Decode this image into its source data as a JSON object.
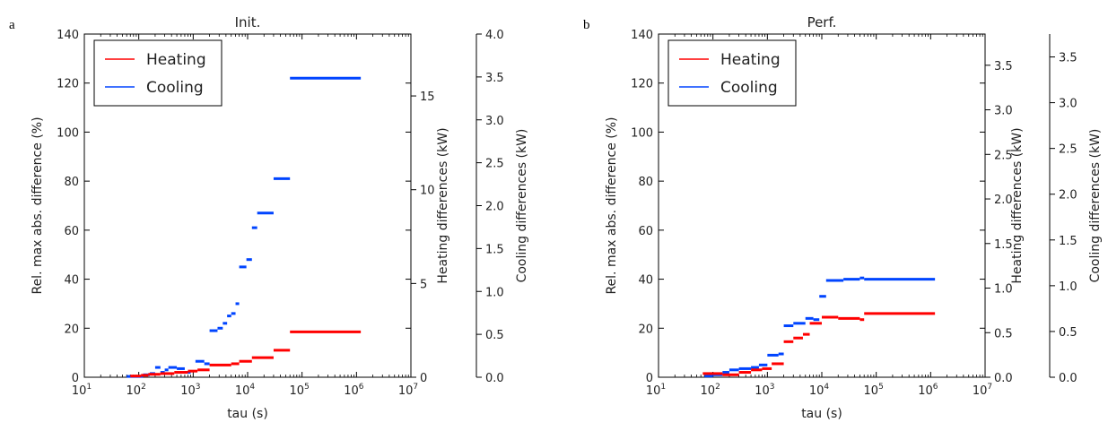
{
  "chart_data": [
    {
      "panel_label": "a",
      "type": "line",
      "title": "Init.",
      "xlabel": "tau (s)",
      "x_scale": "log",
      "xlim": [
        10,
        10000000
      ],
      "x_ticks": [
        {
          "v": 10,
          "b": "10",
          "e": "1"
        },
        {
          "v": 100,
          "b": "10",
          "e": "2"
        },
        {
          "v": 1000,
          "b": "10",
          "e": "3"
        },
        {
          "v": 10000,
          "b": "10",
          "e": "4"
        },
        {
          "v": 100000,
          "b": "10",
          "e": "5"
        },
        {
          "v": 1000000,
          "b": "10",
          "e": "6"
        },
        {
          "v": 10000000,
          "b": "10",
          "e": "7"
        }
      ],
      "ylabel": "Rel. max abs. difference (%)",
      "ylim": [
        0,
        140
      ],
      "y_ticks": [
        0,
        20,
        40,
        60,
        80,
        100,
        120,
        140
      ],
      "y2_label": "Heating differences (kW)",
      "y2_lim": [
        0,
        18.3
      ],
      "y2_ticks": [
        0,
        5,
        10,
        15
      ],
      "y3_label": "Cooling differences (kW)",
      "y3_lim": [
        0,
        4.0
      ],
      "y3_ticks": [
        "0.0",
        "0.5",
        "1.0",
        "1.5",
        "2.0",
        "2.5",
        "3.0",
        "3.5",
        "4.0"
      ],
      "legend_position": "upper-left",
      "series": [
        {
          "name": "Heating",
          "color": "#ff0000",
          "segments": [
            [
              70,
              110,
              0.5
            ],
            [
              110,
              150,
              0.8
            ],
            [
              150,
              250,
              1.2
            ],
            [
              250,
              450,
              1.5
            ],
            [
              450,
              800,
              2.0
            ],
            [
              800,
              1200,
              2.5
            ],
            [
              1200,
              2000,
              3.0
            ],
            [
              2000,
              5000,
              5.0
            ],
            [
              5000,
              7000,
              5.5
            ],
            [
              7000,
              12000,
              6.5
            ],
            [
              12000,
              30000,
              8.0
            ],
            [
              30000,
              60000,
              11.0
            ],
            [
              60000,
              1200000,
              18.5
            ]
          ]
        },
        {
          "name": "Cooling",
          "color": "#0044ff",
          "segments": [
            [
              60,
              120,
              0.3
            ],
            [
              120,
              160,
              1.0
            ],
            [
              160,
              200,
              1.5
            ],
            [
              200,
              250,
              4.0
            ],
            [
              250,
              300,
              2.0
            ],
            [
              300,
              350,
              3.0
            ],
            [
              350,
              500,
              4.0
            ],
            [
              500,
              700,
              3.5
            ],
            [
              700,
              900,
              2.0
            ],
            [
              1100,
              1600,
              6.5
            ],
            [
              1600,
              2000,
              5.5
            ],
            [
              2000,
              2800,
              19.0
            ],
            [
              2800,
              3500,
              20.0
            ],
            [
              3500,
              4200,
              22.0
            ],
            [
              4200,
              5000,
              25.0
            ],
            [
              5000,
              6000,
              26.0
            ],
            [
              6000,
              7000,
              30.0
            ],
            [
              7000,
              9500,
              45.0
            ],
            [
              9500,
              12000,
              48.0
            ],
            [
              12000,
              15000,
              61.0
            ],
            [
              15000,
              30000,
              67.0
            ],
            [
              30000,
              60000,
              81.0
            ],
            [
              60000,
              1200000,
              122.0
            ]
          ]
        }
      ]
    },
    {
      "panel_label": "b",
      "type": "line",
      "title": "Perf.",
      "xlabel": "tau (s)",
      "x_scale": "log",
      "xlim": [
        10,
        10000000
      ],
      "x_ticks": [
        {
          "v": 10,
          "b": "10",
          "e": "1"
        },
        {
          "v": 100,
          "b": "10",
          "e": "2"
        },
        {
          "v": 1000,
          "b": "10",
          "e": "3"
        },
        {
          "v": 10000,
          "b": "10",
          "e": "4"
        },
        {
          "v": 100000,
          "b": "10",
          "e": "5"
        },
        {
          "v": 1000000,
          "b": "10",
          "e": "6"
        },
        {
          "v": 10000000,
          "b": "10",
          "e": "7"
        }
      ],
      "ylabel": "Rel. max abs. difference (%)",
      "ylim": [
        0,
        140
      ],
      "y_ticks": [
        0,
        20,
        40,
        60,
        80,
        100,
        120,
        140
      ],
      "y2_label": "Heating differences (kW)",
      "y2_lim": [
        0,
        3.85
      ],
      "y2_ticks": [
        "0.0",
        "0.5",
        "1.0",
        "1.5",
        "2.0",
        "2.5",
        "3.0",
        "3.5"
      ],
      "y3_label": "Cooling differences (kW)",
      "y3_lim": [
        0,
        3.75
      ],
      "y3_ticks": [
        "0.0",
        "0.5",
        "1.0",
        "1.5",
        "2.0",
        "2.5",
        "3.0",
        "3.5"
      ],
      "legend_position": "upper-left",
      "series": [
        {
          "name": "Heating",
          "color": "#ff0000",
          "segments": [
            [
              65,
              100,
              1.5
            ],
            [
              100,
              150,
              1.5
            ],
            [
              150,
              300,
              1.0
            ],
            [
              300,
              500,
              2.0
            ],
            [
              500,
              800,
              3.0
            ],
            [
              800,
              1200,
              3.5
            ],
            [
              1200,
              2000,
              5.5
            ],
            [
              2000,
              3000,
              14.5
            ],
            [
              3000,
              4500,
              16.0
            ],
            [
              4500,
              6000,
              17.5
            ],
            [
              6000,
              10000,
              22.0
            ],
            [
              10000,
              20000,
              24.5
            ],
            [
              20000,
              50000,
              24.0
            ],
            [
              50000,
              60000,
              23.5
            ],
            [
              60000,
              1200000,
              26.0
            ]
          ]
        },
        {
          "name": "Cooling",
          "color": "#0044ff",
          "segments": [
            [
              70,
              100,
              0.5
            ],
            [
              100,
              150,
              1.0
            ],
            [
              150,
              200,
              2.0
            ],
            [
              200,
              300,
              3.0
            ],
            [
              300,
              500,
              3.5
            ],
            [
              500,
              700,
              4.0
            ],
            [
              700,
              1000,
              5.0
            ],
            [
              1000,
              1600,
              9.0
            ],
            [
              1600,
              2000,
              9.5
            ],
            [
              2000,
              3000,
              21.0
            ],
            [
              3000,
              5000,
              22.0
            ],
            [
              5000,
              7000,
              24.0
            ],
            [
              7000,
              9000,
              23.5
            ],
            [
              9000,
              12000,
              33.0
            ],
            [
              12000,
              25000,
              39.5
            ],
            [
              25000,
              50000,
              40.0
            ],
            [
              50000,
              60000,
              40.5
            ],
            [
              60000,
              1200000,
              40.0
            ]
          ]
        }
      ]
    }
  ]
}
